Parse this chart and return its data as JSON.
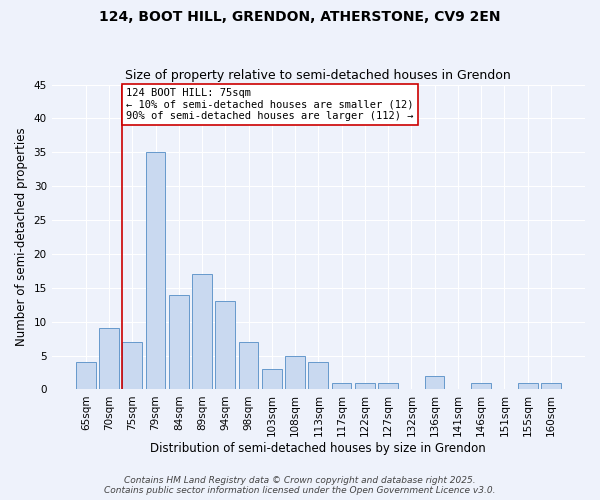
{
  "title1": "124, BOOT HILL, GRENDON, ATHERSTONE, CV9 2EN",
  "title2": "Size of property relative to semi-detached houses in Grendon",
  "xlabel": "Distribution of semi-detached houses by size in Grendon",
  "ylabel": "Number of semi-detached properties",
  "bar_labels": [
    "65sqm",
    "70sqm",
    "75sqm",
    "79sqm",
    "84sqm",
    "89sqm",
    "94sqm",
    "98sqm",
    "103sqm",
    "108sqm",
    "113sqm",
    "117sqm",
    "122sqm",
    "127sqm",
    "132sqm",
    "136sqm",
    "141sqm",
    "146sqm",
    "151sqm",
    "155sqm",
    "160sqm"
  ],
  "bar_values": [
    4,
    9,
    7,
    35,
    14,
    17,
    13,
    7,
    3,
    5,
    4,
    1,
    1,
    1,
    0,
    2,
    0,
    1,
    0,
    1,
    1
  ],
  "bar_color": "#c9d9f0",
  "bar_edge_color": "#6699cc",
  "vline_x_idx": 2,
  "vline_color": "#cc0000",
  "annotation_title": "124 BOOT HILL: 75sqm",
  "annotation_line1": "← 10% of semi-detached houses are smaller (12)",
  "annotation_line2": "90% of semi-detached houses are larger (112) →",
  "annotation_box_facecolor": "#ffffff",
  "annotation_box_edgecolor": "#cc0000",
  "ylim": [
    0,
    45
  ],
  "yticks": [
    0,
    5,
    10,
    15,
    20,
    25,
    30,
    35,
    40,
    45
  ],
  "footer1": "Contains HM Land Registry data © Crown copyright and database right 2025.",
  "footer2": "Contains public sector information licensed under the Open Government Licence v3.0.",
  "bg_color": "#eef2fb",
  "grid_color": "#ffffff",
  "title_fontsize": 10,
  "subtitle_fontsize": 9,
  "axis_label_fontsize": 8.5,
  "tick_fontsize": 7.5,
  "annotation_fontsize": 7.5,
  "footer_fontsize": 6.5
}
